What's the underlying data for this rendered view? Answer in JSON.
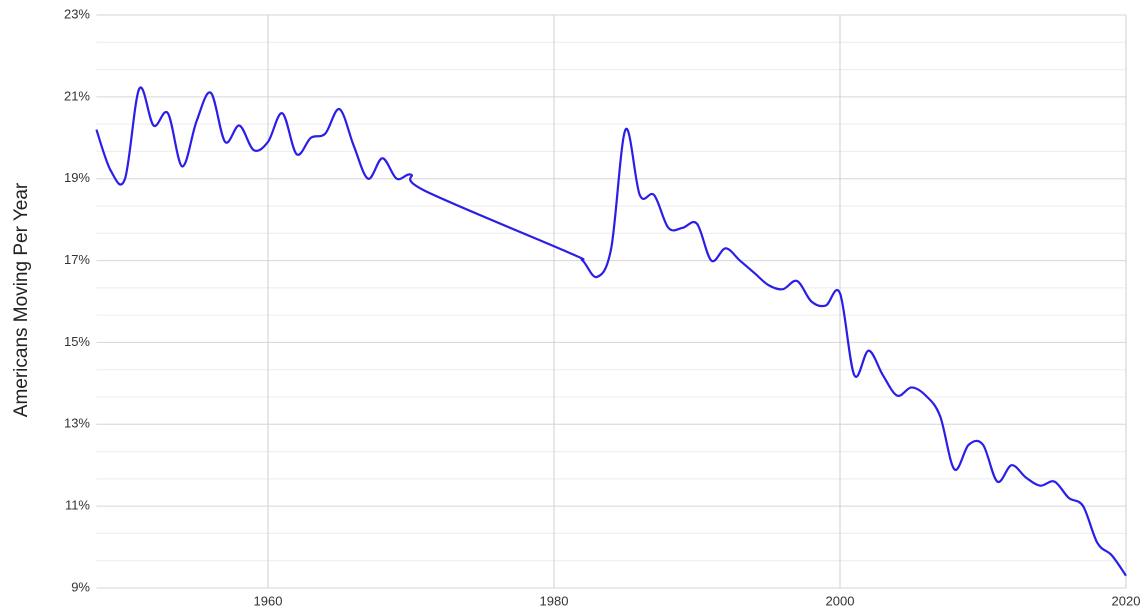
{
  "chart_data": {
    "type": "line",
    "y_label": "Americans Moving Per Year",
    "x": [
      1948,
      1949,
      1950,
      1951,
      1952,
      1953,
      1954,
      1955,
      1956,
      1957,
      1958,
      1959,
      1960,
      1961,
      1962,
      1963,
      1964,
      1965,
      1966,
      1967,
      1968,
      1969,
      1970,
      1971,
      1981,
      1982,
      1983,
      1984,
      1985,
      1986,
      1987,
      1988,
      1989,
      1990,
      1991,
      1992,
      1993,
      1994,
      1995,
      1996,
      1997,
      1998,
      1999,
      2000,
      2001,
      2002,
      2003,
      2004,
      2005,
      2006,
      2007,
      2008,
      2009,
      2010,
      2011,
      2012,
      2013,
      2014,
      2015,
      2016,
      2017,
      2018,
      2019,
      2020
    ],
    "series": [
      {
        "color": "#2b1ee8",
        "values": [
          20.2,
          19.2,
          19.0,
          21.2,
          20.3,
          20.6,
          19.3,
          20.4,
          21.1,
          19.9,
          20.3,
          19.7,
          19.9,
          20.6,
          19.6,
          20.0,
          20.1,
          20.7,
          19.8,
          19.0,
          19.5,
          19.0,
          19.1,
          18.7,
          17.2,
          17.0,
          16.6,
          17.3,
          20.2,
          18.6,
          18.6,
          17.8,
          17.8,
          17.9,
          17.0,
          17.3,
          17.0,
          16.7,
          16.4,
          16.3,
          16.5,
          16.0,
          15.9,
          16.2,
          14.2,
          14.8,
          14.2,
          13.7,
          13.9,
          13.7,
          13.2,
          11.9,
          12.5,
          12.5,
          11.6,
          12.0,
          11.7,
          11.5,
          11.6,
          11.2,
          11.0,
          10.1,
          9.8,
          9.3
        ]
      }
    ],
    "xlim": [
      1948,
      2020
    ],
    "xticks": [
      1960,
      1980,
      2000,
      2020
    ],
    "ylim": [
      9,
      23
    ],
    "yticks": [
      {
        "value": 9,
        "label": "9%"
      },
      {
        "value": 11,
        "label": "11%"
      },
      {
        "value": 13,
        "label": "13%"
      },
      {
        "value": 15,
        "label": "15%"
      },
      {
        "value": 17,
        "label": "17%"
      },
      {
        "value": 19,
        "label": "19%"
      },
      {
        "value": 21,
        "label": "21%"
      },
      {
        "value": 23,
        "label": "23%"
      }
    ],
    "y_minor_divisions": 3,
    "grid": true
  }
}
